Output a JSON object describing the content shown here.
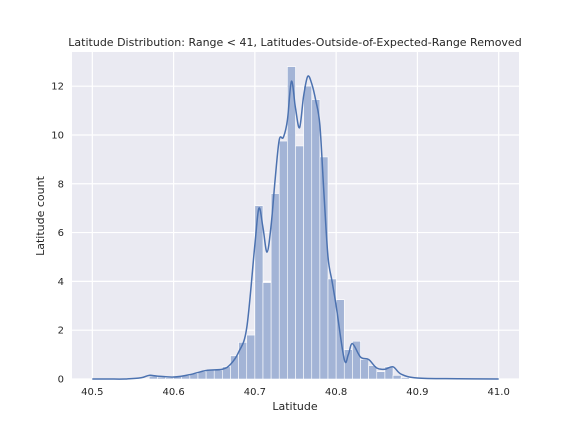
{
  "chart_data": {
    "type": "bar",
    "title": "Latitude Distribution: Range < 41, Latitudes-Outside-of-Expected-Range Removed",
    "xlabel": "Latitude",
    "ylabel": "Latitude count",
    "xlim": [
      40.475,
      41.025
    ],
    "ylim": [
      0,
      13.4
    ],
    "x_ticks": [
      "40.5",
      "40.6",
      "40.7",
      "40.8",
      "40.9",
      "41.0"
    ],
    "y_ticks": [
      "0",
      "2",
      "4",
      "6",
      "8",
      "10",
      "12"
    ],
    "grid": true,
    "bar_color": "#a3b4d6",
    "kde_color": "#4c72b0",
    "background_color": "#eaeaf2",
    "bins": {
      "x_start": [
        40.5,
        40.51,
        40.52,
        40.53,
        40.54,
        40.55,
        40.56,
        40.57,
        40.58,
        40.59,
        40.6,
        40.61,
        40.62,
        40.63,
        40.64,
        40.65,
        40.66,
        40.67,
        40.68,
        40.69,
        40.7,
        40.71,
        40.72,
        40.73,
        40.74,
        40.75,
        40.76,
        40.77,
        40.78,
        40.79,
        40.8,
        40.81,
        40.82,
        40.83,
        40.84,
        40.85,
        40.86,
        40.87,
        40.88,
        40.89,
        40.9,
        40.91,
        40.92,
        40.93,
        40.94,
        40.95,
        40.96,
        40.97,
        40.98,
        40.99
      ],
      "width": 0.01,
      "values": [
        0,
        0,
        0,
        0,
        0,
        0,
        0,
        0.12,
        0.08,
        0.05,
        0.1,
        0.14,
        0.22,
        0.3,
        0.38,
        0.36,
        0.5,
        0.95,
        1.5,
        1.8,
        7.1,
        3.95,
        7.6,
        9.75,
        12.8,
        9.55,
        12.0,
        11.45,
        9.1,
        4.1,
        3.25,
        1.2,
        1.55,
        0.8,
        0.55,
        0.3,
        0.5,
        0.15,
        0.06,
        0.02,
        0,
        0,
        0,
        0,
        0,
        0,
        0,
        0,
        0,
        0
      ]
    },
    "kde": {
      "x": [
        40.5,
        40.52,
        40.54,
        40.56,
        40.57,
        40.58,
        40.6,
        40.62,
        40.64,
        40.66,
        40.67,
        40.68,
        40.69,
        40.7,
        40.705,
        40.71,
        40.715,
        40.72,
        40.725,
        40.73,
        40.735,
        40.74,
        40.745,
        40.75,
        40.755,
        40.76,
        40.765,
        40.77,
        40.775,
        40.78,
        40.785,
        40.79,
        40.795,
        40.8,
        40.81,
        40.815,
        40.82,
        40.83,
        40.84,
        40.85,
        40.86,
        40.87,
        40.88,
        40.9,
        40.95,
        41.0
      ],
      "y": [
        0,
        0,
        0,
        0.05,
        0.15,
        0.12,
        0.08,
        0.18,
        0.35,
        0.4,
        0.6,
        1.1,
        2.1,
        5.5,
        7.0,
        6.2,
        5.2,
        6.3,
        8.2,
        9.8,
        9.9,
        10.6,
        12.2,
        11.1,
        10.3,
        11.6,
        12.4,
        12.1,
        11.4,
        10.4,
        7.6,
        5.0,
        4.0,
        3.0,
        0.8,
        1.0,
        1.45,
        0.9,
        0.8,
        0.45,
        0.4,
        0.5,
        0.2,
        0.04,
        0.01,
        0
      ]
    }
  }
}
